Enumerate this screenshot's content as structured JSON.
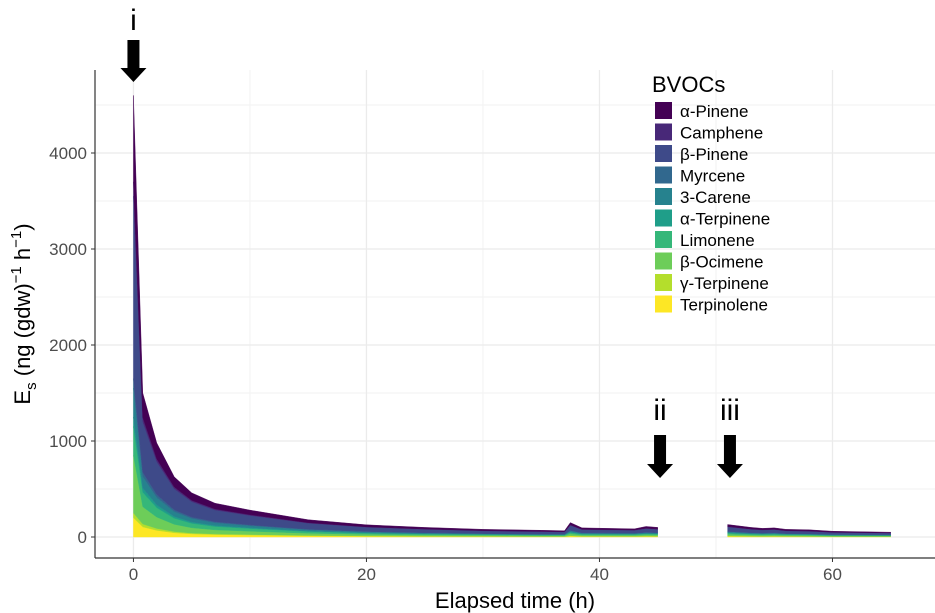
{
  "chart_data": {
    "type": "area",
    "stacked": true,
    "xlabel": "Elapsed time (h)",
    "ylabel": {
      "main": "E",
      "sub": "s",
      "unit1": " (ng (gdw)",
      "sup1": "−1",
      "unit2": " h",
      "sup2": "−1",
      "close": ")"
    },
    "xlim": [
      -3.3,
      68.8
    ],
    "ylim": [
      0,
      4860
    ],
    "xticks": [
      0,
      20,
      40,
      60
    ],
    "yticks": [
      0,
      1000,
      2000,
      3000,
      4000
    ],
    "grid": true,
    "legend": {
      "title": "BVOCs",
      "placement": "top-right"
    },
    "annotations": [
      {
        "label": "i",
        "x": 0
      },
      {
        "label": "ii",
        "x": 45.2
      },
      {
        "label": "iii",
        "x": 51.2
      }
    ],
    "x": [
      0,
      0.8,
      2,
      3.5,
      5,
      7,
      10,
      15,
      20,
      25,
      30,
      35,
      37,
      37.5,
      38.5,
      43,
      44,
      45,
      48,
      51,
      53,
      54,
      55,
      56,
      58,
      60,
      65
    ],
    "series": [
      {
        "name": "α-Pinene",
        "color": "#440154",
        "values": [
          900,
          255,
          167,
          106,
          78,
          60,
          48,
          31,
          21,
          17,
          14,
          12,
          10,
          24,
          15,
          12,
          19,
          17,
          null,
          21,
          17,
          14,
          15,
          14,
          13,
          10,
          7
        ]
      },
      {
        "name": "Camphene",
        "color": "#482878",
        "values": [
          150,
          45,
          29,
          19,
          14,
          11,
          8,
          5,
          4,
          3,
          2,
          2,
          2,
          5,
          3,
          3,
          3,
          3,
          null,
          4,
          3,
          3,
          3,
          2,
          2,
          2,
          2
        ]
      },
      {
        "name": "β-Pinene",
        "color": "#3E4A89",
        "values": [
          1900,
          525,
          343,
          219,
          161,
          122,
          98,
          63,
          44,
          35,
          28,
          25,
          23,
          52,
          33,
          30,
          39,
          35,
          null,
          46,
          35,
          32,
          33,
          28,
          26,
          21,
          17
        ]
      },
      {
        "name": "Myrcene",
        "color": "#31688E",
        "values": [
          100,
          45,
          29,
          19,
          14,
          11,
          8,
          5,
          4,
          3,
          2,
          2,
          2,
          5,
          3,
          3,
          3,
          3,
          null,
          4,
          3,
          3,
          3,
          2,
          2,
          2,
          2
        ]
      },
      {
        "name": "3-Carene",
        "color": "#26828E",
        "values": [
          300,
          120,
          78,
          50,
          37,
          28,
          22,
          14,
          10,
          8,
          6,
          6,
          5,
          12,
          8,
          7,
          9,
          8,
          null,
          10,
          8,
          7,
          8,
          6,
          6,
          5,
          4
        ]
      },
      {
        "name": "α-Terpinene",
        "color": "#1F9E89",
        "values": [
          100,
          45,
          29,
          19,
          14,
          11,
          8,
          5,
          4,
          3,
          2,
          2,
          2,
          5,
          3,
          3,
          3,
          3,
          null,
          4,
          3,
          3,
          3,
          2,
          2,
          2,
          2
        ]
      },
      {
        "name": "Limonene",
        "color": "#35B779",
        "values": [
          300,
          150,
          98,
          63,
          46,
          35,
          28,
          18,
          13,
          10,
          8,
          7,
          7,
          15,
          10,
          9,
          11,
          10,
          null,
          13,
          10,
          9,
          10,
          8,
          8,
          6,
          5
        ]
      },
      {
        "name": "β-Ocimene",
        "color": "#6DCD59",
        "values": [
          600,
          180,
          118,
          75,
          55,
          42,
          34,
          22,
          15,
          12,
          10,
          8,
          8,
          18,
          11,
          10,
          13,
          12,
          null,
          16,
          12,
          11,
          11,
          10,
          9,
          7,
          6
        ]
      },
      {
        "name": "γ-Terpinene",
        "color": "#B4DE2C",
        "values": [
          50,
          30,
          20,
          13,
          9,
          7,
          6,
          4,
          3,
          2,
          2,
          1,
          1,
          3,
          2,
          2,
          2,
          2,
          null,
          3,
          2,
          2,
          2,
          2,
          2,
          1,
          1
        ]
      },
      {
        "name": "Terpinolene",
        "color": "#FDE725",
        "values": [
          200,
          105,
          69,
          44,
          32,
          25,
          20,
          13,
          9,
          7,
          6,
          5,
          5,
          11,
          7,
          6,
          8,
          7,
          null,
          9,
          7,
          6,
          7,
          6,
          5,
          4,
          4
        ]
      }
    ]
  }
}
